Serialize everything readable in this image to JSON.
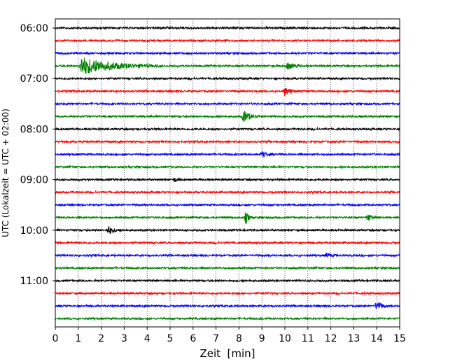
{
  "chart_data": {
    "type": "line",
    "title": "",
    "xlabel": "Zeit  [min]",
    "ylabel": "UTC (Lokalzeit = UTC + 02:00)",
    "xlim": [
      0,
      15
    ],
    "x_ticks": [
      "0",
      "1",
      "2",
      "3",
      "4",
      "5",
      "6",
      "7",
      "8",
      "9",
      "10",
      "11",
      "12",
      "13",
      "14",
      "15"
    ],
    "y_ticks": [
      "06:00",
      "07:00",
      "08:00",
      "09:00",
      "10:00",
      "11:00"
    ],
    "grid": "vertical dotted",
    "trace_interval_min": 15,
    "trace_colors": [
      "#000000",
      "#ff0000",
      "#0000ff",
      "#008000"
    ],
    "traces": [
      {
        "start": "06:00",
        "events": []
      },
      {
        "start": "06:15",
        "events": []
      },
      {
        "start": "06:30",
        "events": []
      },
      {
        "start": "06:45",
        "events": [
          {
            "t": 1.1,
            "amp": 13,
            "dur": 3.5
          },
          {
            "t": 10.1,
            "amp": 5,
            "dur": 0.8
          }
        ]
      },
      {
        "start": "07:00",
        "events": []
      },
      {
        "start": "07:15",
        "events": [
          {
            "t": 10.0,
            "amp": 6,
            "dur": 0.6
          }
        ]
      },
      {
        "start": "07:30",
        "events": []
      },
      {
        "start": "07:45",
        "events": [
          {
            "t": 8.2,
            "amp": 9,
            "dur": 0.7
          }
        ]
      },
      {
        "start": "08:00",
        "events": []
      },
      {
        "start": "08:15",
        "events": []
      },
      {
        "start": "08:30",
        "events": [
          {
            "t": 9.0,
            "amp": 4,
            "dur": 0.6
          }
        ]
      },
      {
        "start": "08:45",
        "events": []
      },
      {
        "start": "09:00",
        "events": [
          {
            "t": 5.2,
            "amp": 3,
            "dur": 0.3
          }
        ]
      },
      {
        "start": "09:15",
        "events": []
      },
      {
        "start": "09:30",
        "events": []
      },
      {
        "start": "09:45",
        "events": [
          {
            "t": 8.3,
            "amp": 9,
            "dur": 0.3
          },
          {
            "t": 13.6,
            "amp": 4,
            "dur": 0.6
          }
        ]
      },
      {
        "start": "10:00",
        "events": [
          {
            "t": 2.3,
            "amp": 6,
            "dur": 0.6
          }
        ]
      },
      {
        "start": "10:15",
        "events": []
      },
      {
        "start": "10:30",
        "events": [
          {
            "t": 11.8,
            "amp": 3,
            "dur": 0.5
          }
        ]
      },
      {
        "start": "10:45",
        "events": []
      },
      {
        "start": "11:00",
        "events": []
      },
      {
        "start": "11:15",
        "events": []
      },
      {
        "start": "11:30",
        "events": [
          {
            "t": 14.0,
            "amp": 8,
            "dur": 0.5
          }
        ]
      },
      {
        "start": "11:45",
        "events": []
      }
    ]
  }
}
